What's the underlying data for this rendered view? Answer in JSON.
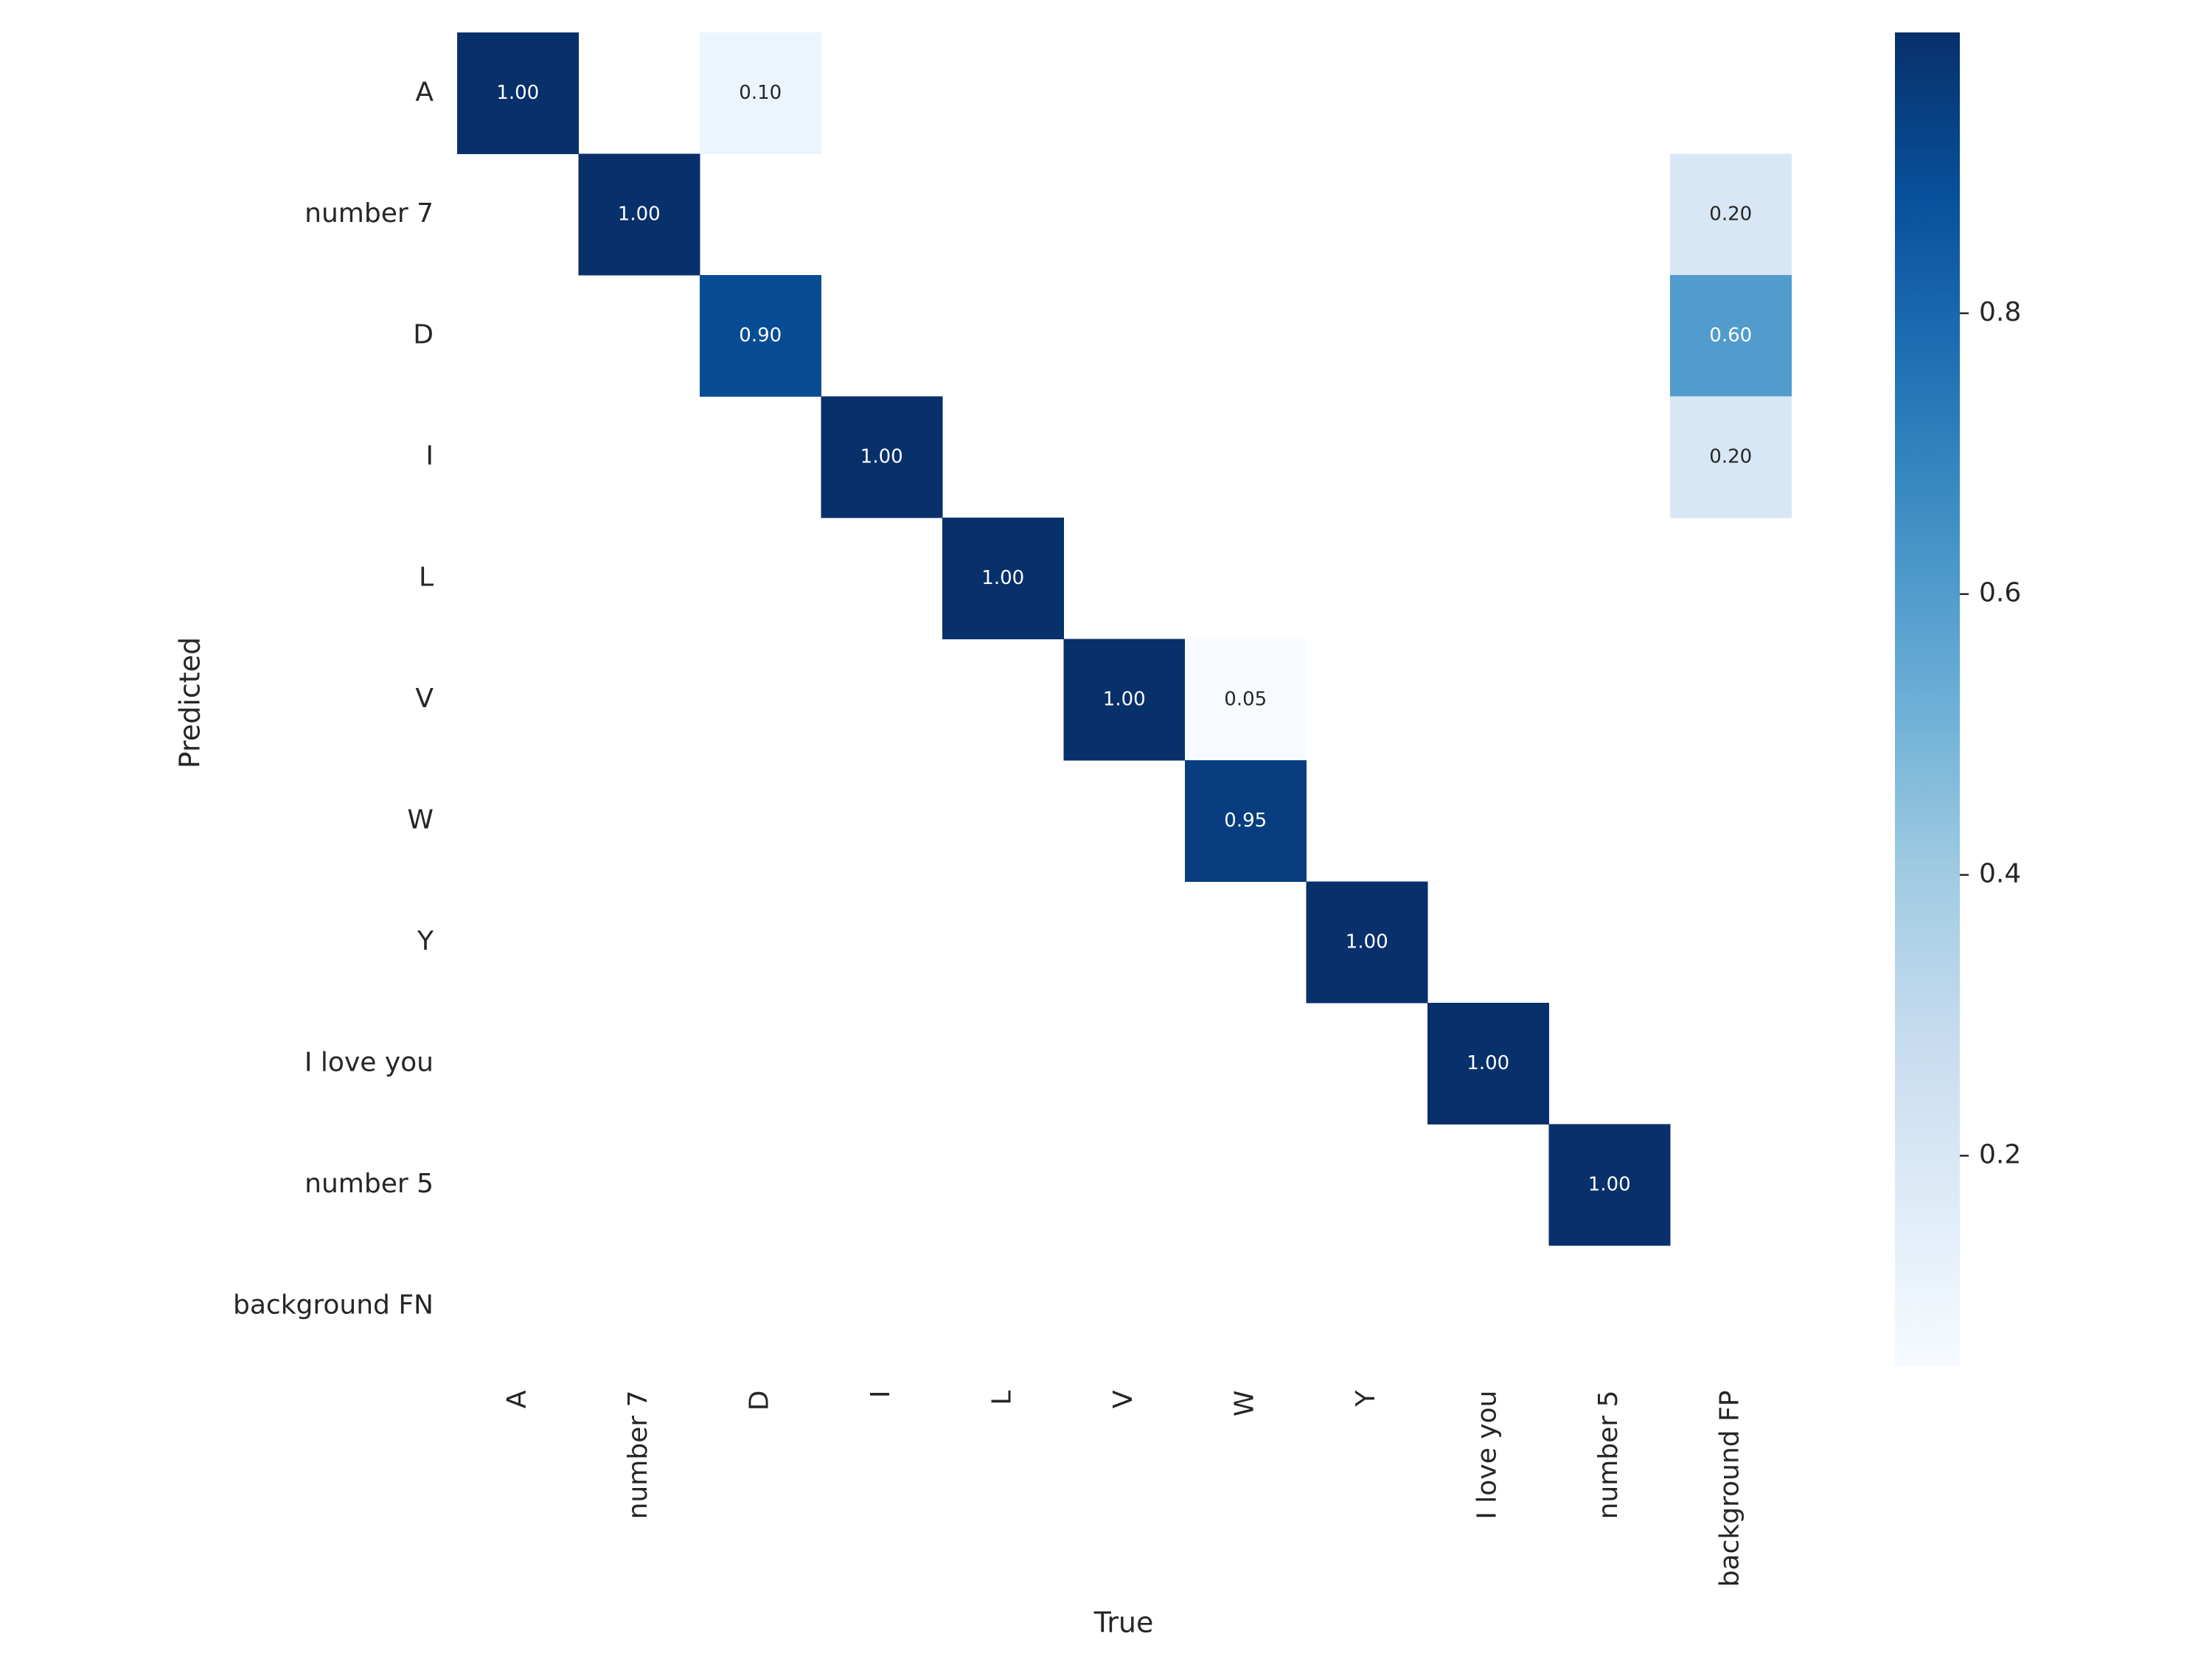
{
  "chart_data": {
    "type": "heatmap",
    "title": "",
    "xlabel": "True",
    "ylabel": "Predicted",
    "x_categories": [
      "A",
      "number 7",
      "D",
      "I",
      "L",
      "V",
      "W",
      "Y",
      "I love you",
      "number 5",
      "background FP"
    ],
    "y_categories": [
      "A",
      "number 7",
      "D",
      "I",
      "L",
      "V",
      "W",
      "Y",
      "I love you",
      "number 5",
      "background FN"
    ],
    "values": [
      [
        1.0,
        null,
        0.1,
        null,
        null,
        null,
        null,
        null,
        null,
        null,
        null
      ],
      [
        null,
        1.0,
        null,
        null,
        null,
        null,
        null,
        null,
        null,
        null,
        0.2
      ],
      [
        null,
        null,
        0.9,
        null,
        null,
        null,
        null,
        null,
        null,
        null,
        0.6
      ],
      [
        null,
        null,
        null,
        1.0,
        null,
        null,
        null,
        null,
        null,
        null,
        0.2
      ],
      [
        null,
        null,
        null,
        null,
        1.0,
        null,
        null,
        null,
        null,
        null,
        null
      ],
      [
        null,
        null,
        null,
        null,
        null,
        1.0,
        0.05,
        null,
        null,
        null,
        null
      ],
      [
        null,
        null,
        null,
        null,
        null,
        null,
        0.95,
        null,
        null,
        null,
        null
      ],
      [
        null,
        null,
        null,
        null,
        null,
        null,
        null,
        1.0,
        null,
        null,
        null
      ],
      [
        null,
        null,
        null,
        null,
        null,
        null,
        null,
        null,
        1.0,
        null,
        null
      ],
      [
        null,
        null,
        null,
        null,
        null,
        null,
        null,
        null,
        null,
        1.0,
        null
      ],
      [
        null,
        null,
        null,
        null,
        null,
        null,
        null,
        null,
        null,
        null,
        null
      ]
    ],
    "colorbar": {
      "colormap": "Blues",
      "range": [
        0.05,
        1.0
      ],
      "ticks": [
        0.2,
        0.4,
        0.6,
        0.8
      ],
      "tick_labels": [
        "0.2",
        "0.4",
        "0.6",
        "0.8"
      ]
    },
    "value_format": "0.00",
    "grid": false
  }
}
